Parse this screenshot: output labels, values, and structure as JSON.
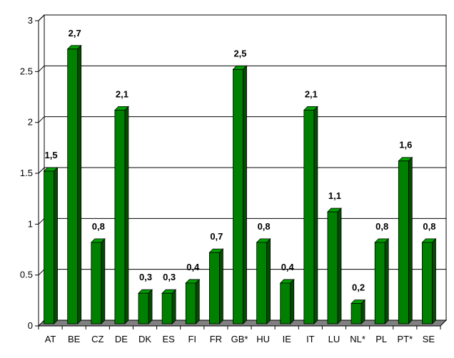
{
  "chart_data": {
    "type": "bar",
    "title": "",
    "xlabel": "",
    "ylabel": "",
    "ylim": [
      0,
      3
    ],
    "yticks": [
      "0",
      "0.5",
      "1",
      "1.5",
      "2",
      "2.5",
      "3"
    ],
    "grid": true,
    "style": "3d",
    "categories": [
      "AT",
      "BE",
      "CZ",
      "DE",
      "DK",
      "ES",
      "FI",
      "FR",
      "GB*",
      "HU",
      "IE",
      "IT",
      "LU",
      "NL*",
      "PL",
      "PT*",
      "SE"
    ],
    "values": [
      1.5,
      2.7,
      0.8,
      2.1,
      0.3,
      0.3,
      0.4,
      0.7,
      2.5,
      0.8,
      0.4,
      2.1,
      1.1,
      0.2,
      0.8,
      1.6,
      0.8
    ],
    "data_labels": [
      "1,5",
      "2,7",
      "0,8",
      "2,1",
      "0,3",
      "0,3",
      "0,4",
      "0,7",
      "2,5",
      "0,8",
      "0,4",
      "2,1",
      "1,1",
      "0,2",
      "0,8",
      "1,6",
      "0,8"
    ],
    "colors": {
      "bar_front": "#008000",
      "bar_side": "#004d00",
      "bar_top": "#00a000",
      "floor": "#808080",
      "grid": "#000000"
    }
  }
}
